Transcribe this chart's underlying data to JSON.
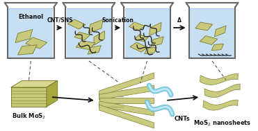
{
  "mos2_color": "#c8c87a",
  "mos2_dark": "#7a7a2a",
  "mos2_light": "#d8d890",
  "cnt_color": "#2a2a2a",
  "water_color": "#b8d8f0",
  "cnt_nano_color": "#8dd4e8",
  "cnt_nano_dark": "#5ab8d0",
  "arrow_color": "#222222",
  "step_labels": [
    "CNT/SNS",
    "Sonication",
    "Δ"
  ],
  "beaker_label": "Ethanol",
  "bulk_label": "Bulk MoS$_2$",
  "cnt_label": "CNTs",
  "nano_label": "MoS$_2$ nanosheets"
}
